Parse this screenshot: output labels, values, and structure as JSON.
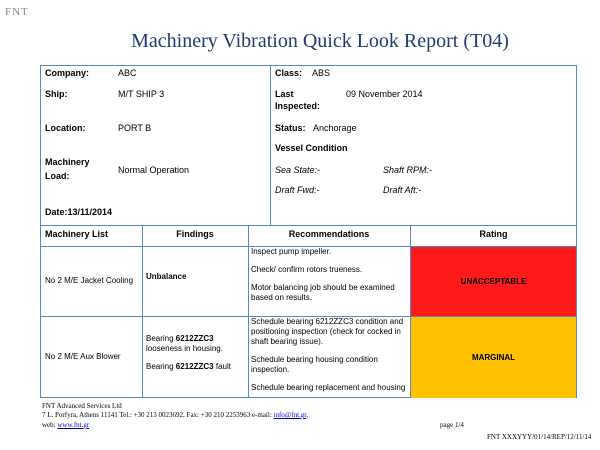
{
  "logo": "FNT",
  "title": "Machinery Vibration Quick Look Report (T04)",
  "info": {
    "company_label": "Company:",
    "company": "ABC",
    "class_label": "Class:",
    "class": "ABS",
    "ship_label": "Ship:",
    "ship": "M/T SHIP 3",
    "last_inspected_label": [
      "Last",
      "Inspected:"
    ],
    "last_inspected": "09 November  2014",
    "location_label": "Location:",
    "location": "PORT B",
    "status_label": "Status:",
    "status": "Anchorage",
    "vessel_condition": "Vessel Condition",
    "machinery_load_label": [
      "Machinery",
      "Load:"
    ],
    "machinery_load": "Normal Operation",
    "sea_state": "Sea State:-",
    "shaft_rpm": "Shaft RPM:-",
    "draft_fwd": "Draft Fwd:-",
    "draft_aft": "Draft Aft:-",
    "date": "Date:13/11/2014"
  },
  "table": {
    "headers": [
      "Machinery List",
      "Findings",
      "Recommendations",
      "Rating"
    ],
    "rows": [
      {
        "machinery": "No 2 M/E Jacket Cooling",
        "findings": [
          [
            "",
            "Unbalance",
            ""
          ]
        ],
        "recommendations": [
          "Inspect pump impeller.",
          "Check/ confirm rotors trueness.",
          "Motor balancing job should be examined based on results."
        ],
        "rating": "UNACCEPTABLE",
        "rating_color": "#ff1a1a"
      },
      {
        "machinery": "No 2 M/E Aux Blower",
        "findings": [
          [
            "Bearing ",
            "6212ZZC3",
            " looseness in housing."
          ],
          [
            "Bearing ",
            "6212ZZC3",
            " fault"
          ]
        ],
        "recommendations": [
          "Schedule bearing 6212ZZC3 condition and positioning inspection (check for cocked in shaft bearing issue).",
          "Schedule bearing housing condition inspection.",
          "Schedule bearing replacement and housing"
        ],
        "rating": "MARGINAL",
        "rating_color": "#ffc000"
      }
    ]
  },
  "footer": {
    "company": "FNT Advanced Services Ltd",
    "address": "7 L. Porfyra, Athens 11141 Tel.: +30 213 0023692, Fax: +30 210 2253963 e-mail:",
    "email": "info@fnt.gr",
    "email_suffix": ",",
    "web_label": "web:",
    "web": "www.fnt.gr",
    "page": "page 1/4",
    "reference": "FNT XXXYYY/01/14/REP/12/11/14"
  }
}
